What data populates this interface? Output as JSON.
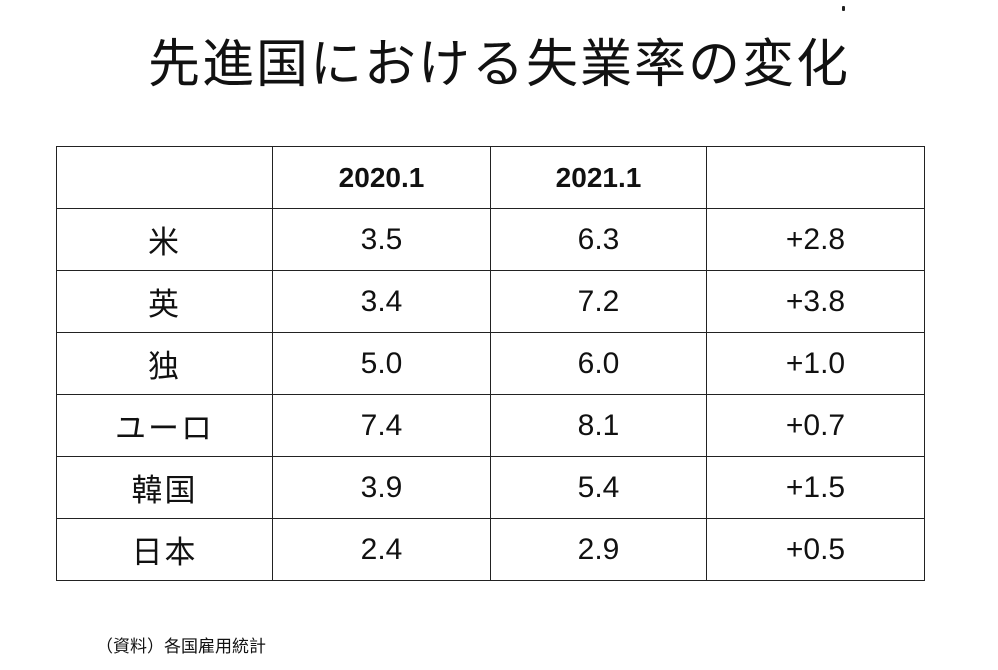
{
  "title": "先進国における失業率の変化",
  "table": {
    "headers": [
      "",
      "2020.1",
      "2021.1",
      ""
    ],
    "rows": [
      {
        "country": "米",
        "y2020": "3.5",
        "y2021": "6.3",
        "change": "+2.8"
      },
      {
        "country": "英",
        "y2020": "3.4",
        "y2021": "7.2",
        "change": "+3.8"
      },
      {
        "country": "独",
        "y2020": "5.0",
        "y2021": "6.0",
        "change": "+1.0"
      },
      {
        "country": "ユーロ",
        "y2020": "7.4",
        "y2021": "8.1",
        "change": "+0.7"
      },
      {
        "country": "韓国",
        "y2020": "3.9",
        "y2021": "5.4",
        "change": "+1.5"
      },
      {
        "country": "日本",
        "y2020": "2.4",
        "y2021": "2.9",
        "change": "+0.5"
      }
    ]
  },
  "source": "（資料）各国雇用統計"
}
